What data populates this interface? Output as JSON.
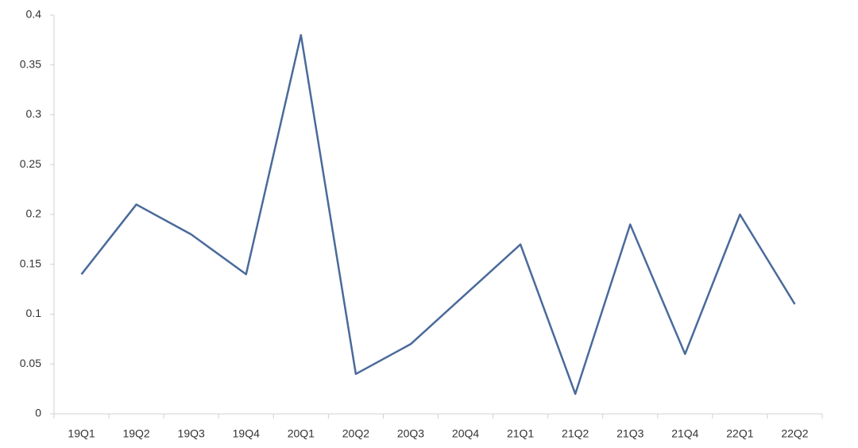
{
  "chart_data": {
    "type": "line",
    "categories": [
      "19Q1",
      "19Q2",
      "19Q3",
      "19Q4",
      "20Q1",
      "20Q2",
      "20Q3",
      "20Q4",
      "21Q1",
      "21Q2",
      "21Q3",
      "21Q4",
      "22Q1",
      "22Q2"
    ],
    "values": [
      0.14,
      0.21,
      0.18,
      0.14,
      0.38,
      0.04,
      0.07,
      0.12,
      0.17,
      0.02,
      0.19,
      0.06,
      0.2,
      0.11
    ],
    "color": "#4a6a9b",
    "ylim": [
      0,
      0.4
    ],
    "yticks": [
      0,
      0.05,
      0.1,
      0.15,
      0.2,
      0.25,
      0.3,
      0.35,
      0.4
    ],
    "grid": false
  }
}
